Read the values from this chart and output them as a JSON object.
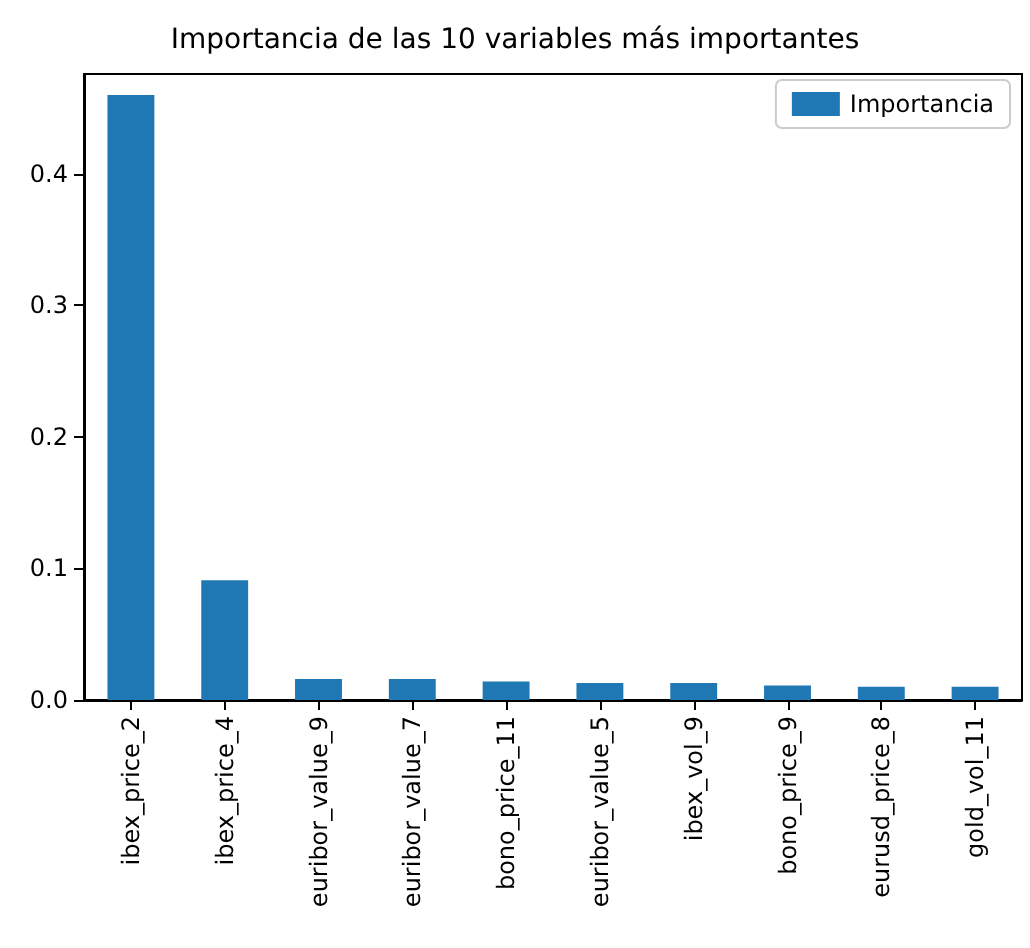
{
  "chart_data": {
    "type": "bar",
    "title": "Importancia de las 10 variables más importantes",
    "categories": [
      "ibex_price_2",
      "ibex_price_4",
      "euribor_value_9",
      "euribor_value_7",
      "bono_price_11",
      "euribor_value_5",
      "ibex_vol_9",
      "bono_price_9",
      "eurusd_price_8",
      "gold_vol_11"
    ],
    "series": [
      {
        "name": "Importancia",
        "color": "#1f77b4",
        "values": [
          0.46,
          0.091,
          0.016,
          0.016,
          0.014,
          0.013,
          0.013,
          0.011,
          0.01,
          0.01
        ]
      }
    ],
    "ylim": [
      0,
      0.476
    ],
    "yticks": [
      {
        "value": 0,
        "label": "0.0"
      },
      0.1,
      0.2,
      0.3,
      0.4
    ],
    "grid": false,
    "legend": "top right"
  }
}
